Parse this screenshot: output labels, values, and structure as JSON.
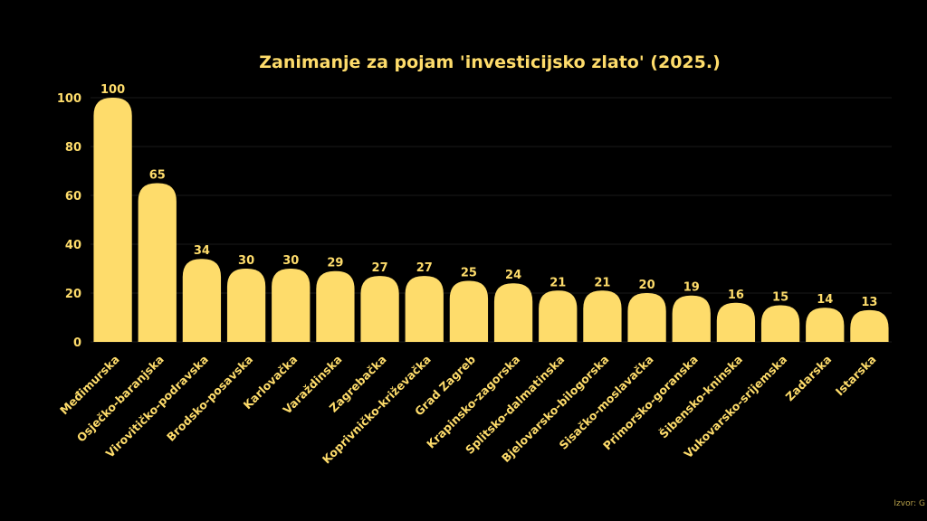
{
  "colors": {
    "background": "#000000",
    "bar": "#FEDC6B",
    "text": "#FEDC6B",
    "grid": "#1a1a1a"
  },
  "source_text": "Izvor: G",
  "chart_data": {
    "type": "bar",
    "title": "Zanimanje za pojam 'investicijsko zlato' (2025.)",
    "xlabel": "",
    "ylabel": "",
    "ylim": [
      0,
      100
    ],
    "yticks": [
      0,
      20,
      40,
      60,
      80,
      100
    ],
    "categories": [
      "Međimurska",
      "Osječko-baranjska",
      "Virovitičko-podravska",
      "Brodsko-posavska",
      "Karlovačka",
      "Varaždinska",
      "Zagrebačka",
      "Koprivničko-križevačka",
      "Grad Zagreb",
      "Krapinsko-zagorska",
      "Splitsko-dalmatinska",
      "Bjelovarsko-bilogorska",
      "Sisačko-moslavačka",
      "Primorsko-goranska",
      "Šibensko-kninska",
      "Vukovarsko-srijemska",
      "Zadarska",
      "Istarska"
    ],
    "values": [
      100,
      65,
      34,
      30,
      30,
      29,
      27,
      27,
      25,
      24,
      21,
      21,
      20,
      19,
      16,
      15,
      14,
      13
    ]
  }
}
